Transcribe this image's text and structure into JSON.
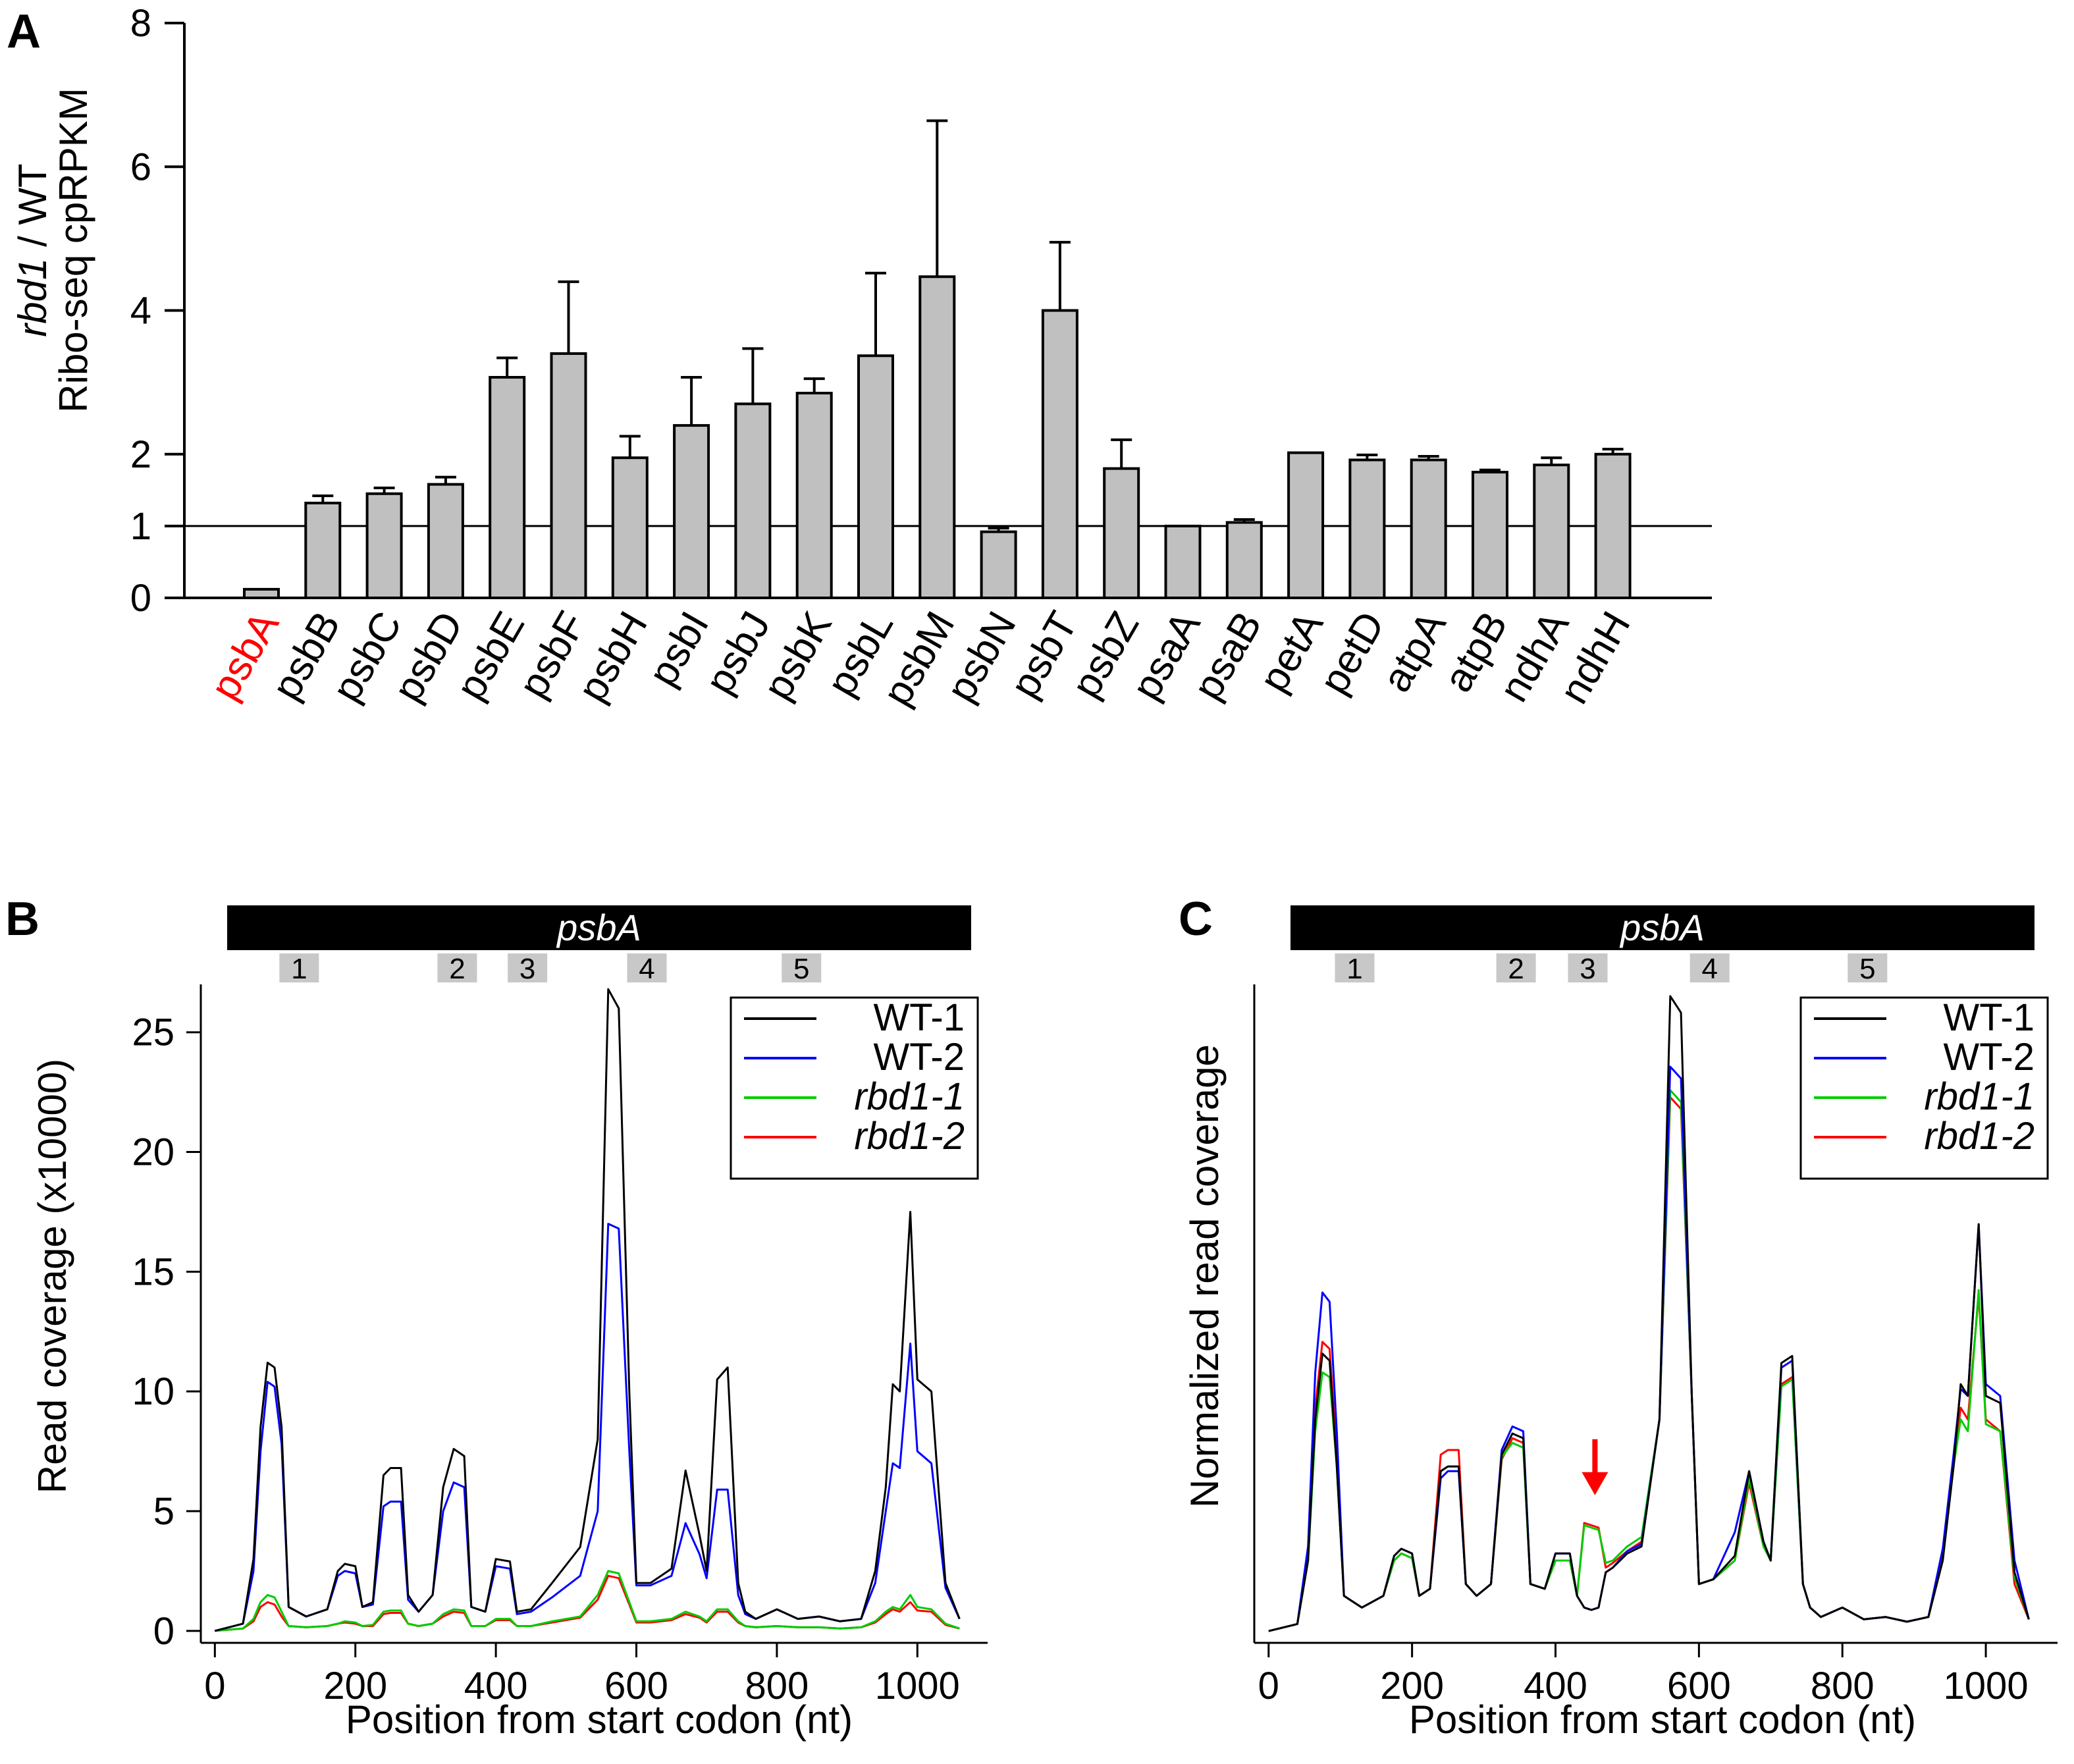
{
  "panels": {
    "a": {
      "letter": "A",
      "ylabel_italic": "rbd1",
      "ylabel_rest": " / WT",
      "ylabel_line2": "Ribo-seq cpRPKM"
    },
    "b": {
      "letter": "B",
      "ylabel": "Read coverage (x10000)",
      "xlabel": "Position from start codon (nt)"
    },
    "c": {
      "letter": "C",
      "ylabel": "Normalized read coverage",
      "xlabel": "Position from start codon (nt)"
    }
  },
  "gene_bar": {
    "name": "psbA",
    "regions": [
      "1",
      "2",
      "3",
      "4",
      "5"
    ],
    "region_pos": [
      120,
      345,
      445,
      615,
      835
    ]
  },
  "legend": [
    {
      "label": "WT-1",
      "color": "#000000",
      "italic": false
    },
    {
      "label": "WT-2",
      "color": "#0000ff",
      "italic": false
    },
    {
      "label": "rbd1-1",
      "color": "#00cc00",
      "italic": true
    },
    {
      "label": "rbd1-2",
      "color": "#ff0000",
      "italic": true
    }
  ],
  "colors": {
    "bar_fill": "#c0c0c0",
    "highlight": "#ff0000",
    "arrow": "#ff0000"
  },
  "chart_data": [
    {
      "id": "A",
      "type": "bar",
      "title": "",
      "xlabel": "",
      "ylabel": "rbd1 / WT Ribo-seq cpRPKM",
      "categories": [
        "psbA",
        "psbB",
        "psbC",
        "psbD",
        "psbE",
        "psbF",
        "psbH",
        "psbI",
        "psbJ",
        "psbK",
        "psbL",
        "psbM",
        "psbN",
        "psbT",
        "psbZ",
        "psaA",
        "psaB",
        "petA",
        "petD",
        "atpA",
        "atpB",
        "ndhA",
        "ndhH"
      ],
      "highlight_category": "psbA",
      "values": [
        0.12,
        1.32,
        1.45,
        1.58,
        3.07,
        3.4,
        1.95,
        2.4,
        2.7,
        2.85,
        3.37,
        4.47,
        0.92,
        4.0,
        1.8,
        1.0,
        1.05,
        2.02,
        1.92,
        1.92,
        1.75,
        1.85,
        2.0
      ],
      "errors": [
        0.0,
        0.1,
        0.08,
        0.1,
        0.27,
        1.0,
        0.3,
        0.67,
        0.77,
        0.2,
        1.15,
        2.17,
        0.05,
        0.95,
        0.4,
        0.0,
        0.04,
        0.0,
        0.07,
        0.05,
        0.03,
        0.1,
        0.07
      ],
      "ylim": [
        0,
        8
      ],
      "yticks": [
        0,
        1,
        2,
        4,
        6,
        8
      ],
      "reference_line": 1
    },
    {
      "id": "B",
      "type": "line",
      "xlabel": "Position from start codon (nt)",
      "ylabel": "Read coverage (x10000)",
      "xlim": [
        -20,
        1100
      ],
      "ylim": [
        -0.5,
        27
      ],
      "xticks": [
        0,
        200,
        400,
        600,
        800,
        1000
      ],
      "yticks": [
        0,
        5,
        10,
        15,
        20,
        25
      ],
      "x": [
        0,
        40,
        55,
        65,
        75,
        85,
        95,
        105,
        130,
        160,
        175,
        185,
        200,
        210,
        225,
        240,
        250,
        265,
        275,
        290,
        310,
        325,
        340,
        355,
        365,
        385,
        400,
        420,
        430,
        450,
        480,
        520,
        545,
        560,
        575,
        590,
        600,
        620,
        650,
        670,
        690,
        700,
        715,
        730,
        745,
        755,
        770,
        800,
        830,
        860,
        890,
        920,
        940,
        955,
        965,
        975,
        990,
        1000,
        1020,
        1040,
        1060
      ],
      "series": [
        {
          "name": "WT-1",
          "values": [
            0,
            0.3,
            3.0,
            8.5,
            11.2,
            11.0,
            8.5,
            1.0,
            0.6,
            0.9,
            2.5,
            2.8,
            2.7,
            1.0,
            1.2,
            6.5,
            6.8,
            6.8,
            1.5,
            0.8,
            1.5,
            6.0,
            7.6,
            7.3,
            1.0,
            0.8,
            3.0,
            2.9,
            0.8,
            0.9,
            2.0,
            3.5,
            8.0,
            26.8,
            26.0,
            10.0,
            2.0,
            2.0,
            2.6,
            6.7,
            4.0,
            2.5,
            10.5,
            11.0,
            2.0,
            0.8,
            0.5,
            0.9,
            0.5,
            0.6,
            0.4,
            0.5,
            2.5,
            6.0,
            10.3,
            10.0,
            17.5,
            10.5,
            10.0,
            2.0,
            0.5
          ]
        },
        {
          "name": "WT-2",
          "values": [
            0,
            0.3,
            2.5,
            7.5,
            10.4,
            10.2,
            7.8,
            1.0,
            0.6,
            0.9,
            2.3,
            2.5,
            2.4,
            1.0,
            1.1,
            5.2,
            5.4,
            5.4,
            1.3,
            0.8,
            1.5,
            5.0,
            6.2,
            6.0,
            1.0,
            0.8,
            2.7,
            2.6,
            0.7,
            0.8,
            1.4,
            2.3,
            5.0,
            17.0,
            16.8,
            7.5,
            1.9,
            1.9,
            2.3,
            4.5,
            3.2,
            2.2,
            5.9,
            5.9,
            1.5,
            0.7,
            0.5,
            0.9,
            0.5,
            0.6,
            0.4,
            0.5,
            2.0,
            5.0,
            7.0,
            6.8,
            12.0,
            7.5,
            7.0,
            1.8,
            0.5
          ]
        },
        {
          "name": "rbd1-1",
          "values": [
            0,
            0.1,
            0.5,
            1.2,
            1.5,
            1.4,
            0.8,
            0.2,
            0.15,
            0.2,
            0.3,
            0.4,
            0.35,
            0.2,
            0.25,
            0.8,
            0.85,
            0.85,
            0.3,
            0.2,
            0.3,
            0.7,
            0.9,
            0.85,
            0.2,
            0.2,
            0.5,
            0.5,
            0.2,
            0.2,
            0.4,
            0.6,
            1.5,
            2.5,
            2.4,
            1.2,
            0.4,
            0.4,
            0.5,
            0.8,
            0.6,
            0.4,
            0.9,
            0.9,
            0.4,
            0.2,
            0.15,
            0.2,
            0.15,
            0.15,
            0.1,
            0.15,
            0.4,
            0.8,
            1.0,
            0.9,
            1.5,
            1.0,
            0.9,
            0.3,
            0.1
          ]
        },
        {
          "name": "rbd1-2",
          "values": [
            0,
            0.1,
            0.4,
            1.0,
            1.2,
            1.1,
            0.6,
            0.2,
            0.15,
            0.2,
            0.3,
            0.35,
            0.3,
            0.2,
            0.2,
            0.7,
            0.75,
            0.75,
            0.3,
            0.2,
            0.3,
            0.6,
            0.8,
            0.75,
            0.2,
            0.2,
            0.45,
            0.45,
            0.2,
            0.2,
            0.35,
            0.55,
            1.3,
            2.3,
            2.2,
            1.1,
            0.35,
            0.35,
            0.45,
            0.7,
            0.55,
            0.35,
            0.8,
            0.8,
            0.35,
            0.2,
            0.15,
            0.2,
            0.15,
            0.15,
            0.1,
            0.15,
            0.35,
            0.7,
            0.9,
            0.8,
            1.2,
            0.85,
            0.8,
            0.25,
            0.1
          ]
        }
      ],
      "legend": [
        "WT-1",
        "WT-2",
        "rbd1-1",
        "rbd1-2"
      ],
      "legend_loc": "top-right"
    },
    {
      "id": "C",
      "type": "line",
      "xlabel": "Position from start codon (nt)",
      "ylabel": "Normalized read coverage",
      "xlim": [
        -20,
        1100
      ],
      "ylim": [
        -0.5,
        27.5
      ],
      "xticks": [
        0,
        200,
        400,
        600,
        800,
        1000
      ],
      "yticks": [],
      "x": [
        0,
        40,
        55,
        65,
        75,
        85,
        95,
        105,
        130,
        160,
        175,
        185,
        200,
        210,
        225,
        240,
        250,
        265,
        275,
        290,
        310,
        325,
        340,
        355,
        365,
        385,
        400,
        420,
        430,
        440,
        450,
        460,
        470,
        480,
        500,
        520,
        545,
        560,
        575,
        590,
        600,
        620,
        650,
        670,
        690,
        700,
        715,
        730,
        745,
        755,
        770,
        800,
        830,
        860,
        890,
        920,
        940,
        955,
        965,
        975,
        990,
        1000,
        1020,
        1040,
        1060
      ],
      "series": [
        {
          "name": "WT-1",
          "values": [
            0,
            0.3,
            3.0,
            9.0,
            11.8,
            11.5,
            7.0,
            1.5,
            1.0,
            1.5,
            3.2,
            3.5,
            3.3,
            1.5,
            1.8,
            6.8,
            7.0,
            7.0,
            2.0,
            1.5,
            2.0,
            7.5,
            8.4,
            8.2,
            2.0,
            1.8,
            3.3,
            3.3,
            1.5,
            1.0,
            0.9,
            1.0,
            2.5,
            2.7,
            3.3,
            3.6,
            9.0,
            27.0,
            26.3,
            10.0,
            2.0,
            2.2,
            3.2,
            6.8,
            3.8,
            3.0,
            11.4,
            11.7,
            2.0,
            1.0,
            0.6,
            1.0,
            0.5,
            0.6,
            0.4,
            0.6,
            3.0,
            7.0,
            10.5,
            10.0,
            17.3,
            10.0,
            9.7,
            2.5,
            0.5
          ]
        },
        {
          "name": "WT-2",
          "values": [
            0,
            0.3,
            3.6,
            11.0,
            14.4,
            14.0,
            8.5,
            1.5,
            1.0,
            1.5,
            3.2,
            3.5,
            3.3,
            1.5,
            1.8,
            6.5,
            6.8,
            6.8,
            2.0,
            1.5,
            2.0,
            7.7,
            8.7,
            8.5,
            2.0,
            1.8,
            3.3,
            3.3,
            1.5,
            1.0,
            0.9,
            1.0,
            2.5,
            2.7,
            3.4,
            3.7,
            9.0,
            24.0,
            23.5,
            10.0,
            2.0,
            2.2,
            4.2,
            6.8,
            3.8,
            3.0,
            11.2,
            11.5,
            2.0,
            1.0,
            0.6,
            1.0,
            0.5,
            0.6,
            0.4,
            0.6,
            3.5,
            7.5,
            10.3,
            10.0,
            17.3,
            10.5,
            10.0,
            3.0,
            0.5
          ]
        },
        {
          "name": "rbd1-1",
          "values": [
            0,
            0.3,
            3.0,
            8.5,
            11.0,
            10.8,
            7.0,
            1.5,
            1.0,
            1.5,
            3.0,
            3.3,
            3.1,
            1.5,
            1.8,
            6.8,
            7.0,
            7.0,
            2.0,
            1.5,
            2.0,
            7.4,
            8.0,
            7.8,
            2.0,
            1.8,
            3.0,
            3.0,
            1.5,
            4.5,
            4.4,
            4.3,
            2.9,
            3.0,
            3.6,
            4.0,
            9.0,
            23.0,
            22.5,
            10.0,
            2.0,
            2.2,
            3.0,
            6.5,
            3.6,
            3.0,
            10.4,
            10.7,
            2.0,
            1.0,
            0.6,
            1.0,
            0.5,
            0.6,
            0.4,
            0.6,
            3.5,
            7.0,
            9.0,
            8.5,
            14.5,
            8.8,
            8.5,
            2.3,
            0.5
          ]
        },
        {
          "name": "rbd1-2",
          "values": [
            0,
            0.3,
            3.2,
            9.5,
            12.3,
            12.0,
            7.5,
            1.5,
            1.0,
            1.5,
            3.0,
            3.3,
            3.1,
            1.5,
            1.8,
            7.5,
            7.7,
            7.7,
            2.0,
            1.5,
            2.0,
            7.3,
            8.2,
            8.0,
            2.0,
            1.8,
            3.0,
            3.0,
            1.5,
            4.6,
            4.5,
            4.4,
            2.7,
            2.9,
            3.4,
            3.8,
            9.0,
            22.7,
            22.2,
            10.0,
            2.0,
            2.2,
            3.0,
            6.3,
            3.6,
            3.0,
            10.5,
            10.8,
            2.0,
            1.0,
            0.6,
            1.0,
            0.5,
            0.6,
            0.4,
            0.6,
            3.2,
            7.0,
            9.5,
            9.0,
            14.3,
            9.0,
            8.5,
            2.0,
            0.5
          ]
        }
      ],
      "legend": [
        "WT-1",
        "WT-2",
        "rbd1-1",
        "rbd1-2"
      ],
      "legend_loc": "top-right",
      "annotation": {
        "type": "arrow",
        "x": 455,
        "y": 5.5,
        "label": ""
      }
    }
  ]
}
